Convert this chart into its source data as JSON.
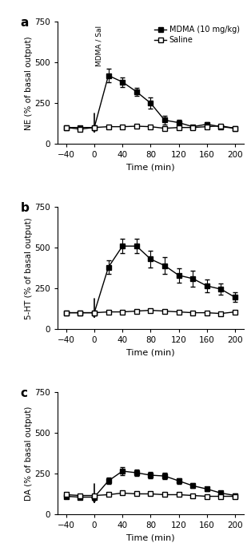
{
  "time_points": [
    -40,
    -20,
    0,
    20,
    40,
    60,
    80,
    100,
    120,
    140,
    160,
    180,
    200
  ],
  "NE_mdma_y": [
    100,
    100,
    100,
    420,
    380,
    320,
    250,
    145,
    130,
    105,
    120,
    105,
    95
  ],
  "NE_mdma_err": [
    10,
    10,
    10,
    40,
    30,
    25,
    35,
    25,
    15,
    10,
    12,
    10,
    8
  ],
  "NE_sal_y": [
    100,
    90,
    100,
    105,
    105,
    108,
    105,
    95,
    100,
    100,
    105,
    110,
    95
  ],
  "NE_sal_err": [
    8,
    8,
    8,
    8,
    8,
    8,
    8,
    8,
    8,
    8,
    8,
    8,
    8
  ],
  "HT_mdma_y": [
    100,
    100,
    100,
    380,
    510,
    510,
    430,
    390,
    330,
    310,
    265,
    245,
    195
  ],
  "HT_mdma_err": [
    10,
    10,
    10,
    40,
    45,
    45,
    50,
    50,
    45,
    50,
    40,
    35,
    30
  ],
  "HT_sal_y": [
    100,
    100,
    100,
    105,
    105,
    110,
    115,
    110,
    105,
    100,
    100,
    95,
    105
  ],
  "HT_sal_err": [
    8,
    8,
    8,
    8,
    8,
    8,
    8,
    8,
    8,
    8,
    8,
    8,
    8
  ],
  "DA_mdma_y": [
    110,
    105,
    105,
    205,
    265,
    255,
    240,
    235,
    205,
    175,
    155,
    130,
    115
  ],
  "DA_mdma_err": [
    10,
    10,
    10,
    20,
    25,
    22,
    20,
    20,
    18,
    15,
    12,
    10,
    10
  ],
  "DA_sal_y": [
    120,
    115,
    115,
    120,
    130,
    125,
    125,
    120,
    120,
    115,
    110,
    110,
    110
  ],
  "DA_sal_err": [
    8,
    8,
    8,
    8,
    8,
    8,
    8,
    8,
    8,
    8,
    8,
    8,
    8
  ],
  "ylim": [
    0,
    750
  ],
  "yticks": [
    0,
    250,
    500,
    750
  ],
  "xlim": [
    -52,
    212
  ],
  "xticks": [
    -40,
    0,
    40,
    80,
    120,
    160,
    200
  ],
  "xlabel": "Time (min)",
  "ylabel_a": "NE (% of basal output)",
  "ylabel_b": "5-HT (% of basal output)",
  "ylabel_c": "DA (% of basal output)",
  "panel_labels": [
    "a",
    "b",
    "c"
  ],
  "legend_mdma": "MDMA (10 mg/kg)",
  "legend_sal": "Saline",
  "annotation_text": "MDMA / Sal",
  "line_color": "#000000",
  "markersize": 5,
  "gray_color": "#555555"
}
